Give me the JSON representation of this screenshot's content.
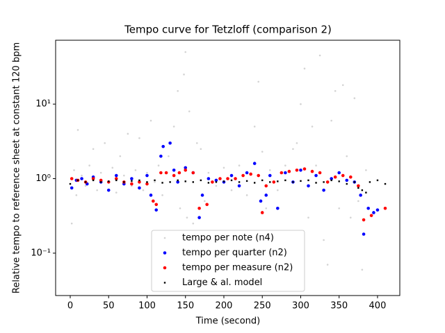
{
  "chart_data": {
    "type": "scatter",
    "title": "Tempo curve for Tetzloff (comparison 2)",
    "xlabel": "Time (second)",
    "ylabel": "Relative tempo to reference sheet at constant 120 bpm",
    "yscale": "log",
    "xlim": [
      -19,
      429
    ],
    "ylim": [
      0.027,
      72
    ],
    "xticks": [
      0,
      50,
      100,
      150,
      200,
      250,
      300,
      350,
      400
    ],
    "yticks": [
      {
        "value": 0.1,
        "label": "10⁻¹"
      },
      {
        "value": 1,
        "label": "10⁰"
      },
      {
        "value": 10,
        "label": "10¹"
      }
    ],
    "legend": "lower center",
    "series": [
      {
        "name": "tempo per note (n4)",
        "color": "#d3d3d3",
        "x": [
          2,
          5,
          8,
          10,
          15,
          20,
          25,
          30,
          35,
          40,
          45,
          50,
          55,
          60,
          65,
          70,
          75,
          80,
          85,
          90,
          95,
          100,
          105,
          110,
          115,
          120,
          128,
          135,
          140,
          143,
          148,
          150,
          152,
          155,
          160,
          165,
          170,
          175,
          180,
          190,
          200,
          210,
          220,
          230,
          240,
          245,
          250,
          255,
          260,
          270,
          280,
          290,
          295,
          300,
          305,
          310,
          315,
          320,
          325,
          330,
          335,
          340,
          345,
          350,
          355,
          360,
          365,
          370,
          375,
          380,
          385
        ],
        "values": [
          0.25,
          1.3,
          0.6,
          4.5,
          1.1,
          0.8,
          1.5,
          2.5,
          0.7,
          1.2,
          3.0,
          0.9,
          1.4,
          0.65,
          2.0,
          1.1,
          4.0,
          0.8,
          1.3,
          3.5,
          0.7,
          1.2,
          6,
          0.9,
          1.5,
          0.6,
          2.0,
          5,
          15,
          0.4,
          25,
          50,
          0.3,
          8,
          0.25,
          3,
          2.5,
          0.5,
          1.2,
          0.8,
          1.4,
          0.7,
          1.5,
          0.6,
          5,
          20,
          2.3,
          0.4,
          1.3,
          0.7,
          1.5,
          2.5,
          3,
          10,
          30,
          0.3,
          5,
          1.5,
          45,
          0.15,
          0.07,
          6,
          15,
          0.4,
          18,
          2,
          0.3,
          12,
          0.5,
          0.06,
          1.3
        ]
      },
      {
        "name": "tempo per quarter (n2)",
        "color": "#0000ff",
        "x": [
          2,
          8,
          15,
          22,
          30,
          40,
          50,
          60,
          70,
          80,
          90,
          100,
          105,
          112,
          118,
          121,
          130,
          135,
          140,
          150,
          160,
          168,
          172,
          180,
          190,
          200,
          210,
          220,
          230,
          240,
          248,
          255,
          260,
          270,
          280,
          290,
          300,
          310,
          320,
          330,
          340,
          350,
          360,
          370,
          378,
          382,
          388,
          395,
          400
        ],
        "values": [
          0.75,
          0.95,
          1.0,
          0.85,
          1.05,
          0.9,
          0.7,
          1.1,
          0.85,
          1.0,
          0.75,
          1.1,
          0.6,
          0.38,
          2.0,
          2.7,
          3.0,
          1.3,
          0.9,
          1.4,
          1.2,
          0.3,
          0.6,
          1.0,
          0.95,
          0.9,
          1.1,
          0.8,
          1.2,
          1.6,
          0.5,
          0.6,
          1.1,
          0.4,
          1.2,
          0.9,
          1.3,
          0.8,
          1.1,
          0.7,
          1.0,
          1.2,
          0.95,
          0.9,
          0.6,
          0.18,
          0.4,
          0.35,
          0.38
        ]
      },
      {
        "name": "tempo per measure (n2)",
        "color": "#ff0000",
        "x": [
          2,
          10,
          20,
          30,
          40,
          50,
          60,
          70,
          80,
          90,
          100,
          108,
          112,
          118,
          125,
          135,
          142,
          150,
          160,
          168,
          178,
          185,
          195,
          205,
          215,
          225,
          235,
          245,
          250,
          255,
          265,
          275,
          285,
          295,
          305,
          315,
          325,
          335,
          345,
          355,
          365,
          375,
          382,
          392,
          410
        ],
        "values": [
          1.0,
          0.95,
          0.9,
          1.0,
          0.95,
          0.9,
          1.0,
          0.9,
          0.85,
          0.9,
          0.85,
          0.5,
          0.45,
          1.2,
          1.2,
          1.1,
          1.2,
          1.3,
          1.2,
          0.4,
          0.45,
          0.9,
          1.0,
          1.0,
          1.0,
          1.1,
          1.15,
          1.1,
          0.35,
          0.8,
          0.9,
          1.2,
          1.25,
          1.3,
          1.35,
          1.25,
          1.2,
          0.9,
          1.05,
          1.1,
          1.05,
          0.8,
          0.28,
          0.32,
          0.4
        ]
      },
      {
        "name": "Large & al. model",
        "color": "#000000",
        "x": [
          0,
          10,
          20,
          30,
          40,
          50,
          60,
          70,
          80,
          90,
          100,
          110,
          120,
          130,
          140,
          150,
          160,
          170,
          180,
          190,
          200,
          210,
          220,
          230,
          240,
          250,
          260,
          270,
          280,
          290,
          300,
          310,
          320,
          330,
          340,
          350,
          360,
          370,
          375,
          380,
          385,
          390,
          400,
          410
        ],
        "values": [
          0.85,
          0.95,
          0.9,
          0.95,
          0.9,
          0.92,
          0.95,
          0.9,
          0.93,
          0.95,
          0.9,
          0.95,
          0.88,
          0.9,
          0.95,
          0.92,
          0.9,
          0.95,
          0.88,
          0.9,
          0.92,
          0.95,
          0.9,
          0.93,
          0.88,
          0.95,
          0.9,
          0.92,
          0.95,
          0.9,
          0.93,
          0.95,
          0.88,
          0.9,
          0.95,
          0.92,
          0.85,
          0.9,
          0.75,
          0.7,
          0.65,
          0.9,
          0.95,
          0.85
        ]
      }
    ]
  }
}
